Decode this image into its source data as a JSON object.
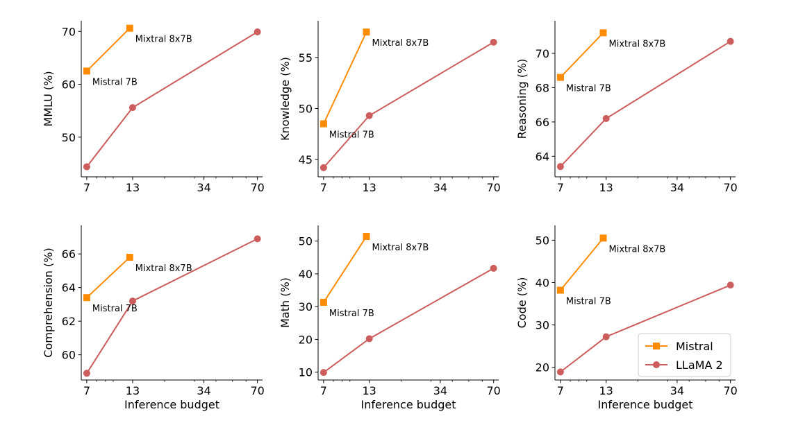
{
  "chart_data": [
    {
      "type": "line",
      "ylabel": "MMLU (%)",
      "xlabel": "",
      "x_scale": "log",
      "xticks": [
        7,
        13,
        34,
        70
      ],
      "xlim": [
        6.5,
        75
      ],
      "yticks": [
        50,
        60,
        70
      ],
      "ylim": [
        42.5,
        72
      ],
      "series": [
        {
          "name": "Mistral",
          "color": "#ff8c00",
          "marker": "square",
          "x": [
            7,
            12.5
          ],
          "y": [
            62.5,
            70.6
          ]
        },
        {
          "name": "LLaMA 2",
          "color": "#cd5c5c",
          "marker": "circle",
          "x": [
            7,
            13,
            70
          ],
          "y": [
            44.4,
            55.6,
            69.9
          ]
        }
      ],
      "annotations": [
        {
          "text": "Mistral 7B",
          "x": 7,
          "y": 62.5
        },
        {
          "text": "Mixtral 8x7B",
          "x": 12.5,
          "y": 70.6
        }
      ]
    },
    {
      "type": "line",
      "ylabel": "Knowledge (%)",
      "xlabel": "",
      "x_scale": "log",
      "xticks": [
        7,
        13,
        34,
        70
      ],
      "xlim": [
        6.5,
        75
      ],
      "yticks": [
        45,
        50,
        55
      ],
      "ylim": [
        43.3,
        58.6
      ],
      "series": [
        {
          "name": "Mistral",
          "color": "#ff8c00",
          "marker": "square",
          "x": [
            7,
            12.5
          ],
          "y": [
            48.5,
            57.5
          ]
        },
        {
          "name": "LLaMA 2",
          "color": "#cd5c5c",
          "marker": "circle",
          "x": [
            7,
            13,
            70
          ],
          "y": [
            44.2,
            49.3,
            56.5
          ]
        }
      ],
      "annotations": [
        {
          "text": "Mistral 7B",
          "x": 7,
          "y": 48.5
        },
        {
          "text": "Mixtral 8x7B",
          "x": 12.5,
          "y": 57.5
        }
      ]
    },
    {
      "type": "line",
      "ylabel": "Reasoning (%)",
      "xlabel": "",
      "x_scale": "log",
      "xticks": [
        7,
        13,
        34,
        70
      ],
      "xlim": [
        6.5,
        75
      ],
      "yticks": [
        64,
        66,
        68,
        70
      ],
      "ylim": [
        62.8,
        71.9
      ],
      "series": [
        {
          "name": "Mistral",
          "color": "#ff8c00",
          "marker": "square",
          "x": [
            7,
            12.5
          ],
          "y": [
            68.6,
            71.2
          ]
        },
        {
          "name": "LLaMA 2",
          "color": "#cd5c5c",
          "marker": "circle",
          "x": [
            7,
            13,
            70
          ],
          "y": [
            63.4,
            66.2,
            70.7
          ]
        }
      ],
      "annotations": [
        {
          "text": "Mistral 7B",
          "x": 7,
          "y": 68.6
        },
        {
          "text": "Mixtral 8x7B",
          "x": 12.5,
          "y": 71.2
        }
      ]
    },
    {
      "type": "line",
      "ylabel": "Comprehension (%)",
      "xlabel": "Inference budget",
      "x_scale": "log",
      "xticks": [
        7,
        13,
        34,
        70
      ],
      "xlim": [
        6.5,
        75
      ],
      "yticks": [
        60,
        62,
        64,
        66
      ],
      "ylim": [
        58.5,
        67.7
      ],
      "series": [
        {
          "name": "Mistral",
          "color": "#ff8c00",
          "marker": "square",
          "x": [
            7,
            12.5
          ],
          "y": [
            63.4,
            65.8
          ]
        },
        {
          "name": "LLaMA 2",
          "color": "#cd5c5c",
          "marker": "circle",
          "x": [
            7,
            13,
            70
          ],
          "y": [
            58.9,
            63.2,
            66.9
          ]
        }
      ],
      "annotations": [
        {
          "text": "Mistral 7B",
          "x": 7,
          "y": 63.4
        },
        {
          "text": "Mixtral 8x7B",
          "x": 12.5,
          "y": 65.8
        }
      ]
    },
    {
      "type": "line",
      "ylabel": "Math (%)",
      "xlabel": "Inference budget",
      "x_scale": "log",
      "xticks": [
        7,
        13,
        34,
        70
      ],
      "xlim": [
        6.5,
        75
      ],
      "yticks": [
        10,
        20,
        30,
        40,
        50
      ],
      "ylim": [
        7.6,
        54.8
      ],
      "series": [
        {
          "name": "Mistral",
          "color": "#ff8c00",
          "marker": "square",
          "x": [
            7,
            12.5
          ],
          "y": [
            31.3,
            51.4
          ]
        },
        {
          "name": "LLaMA 2",
          "color": "#cd5c5c",
          "marker": "circle",
          "x": [
            7,
            13,
            70
          ],
          "y": [
            9.9,
            20.2,
            41.7
          ]
        }
      ],
      "annotations": [
        {
          "text": "Mistral 7B",
          "x": 7,
          "y": 31.3
        },
        {
          "text": "Mixtral 8x7B",
          "x": 12.5,
          "y": 51.4
        }
      ]
    },
    {
      "type": "line",
      "ylabel": "Code (%)",
      "xlabel": "Inference budget",
      "x_scale": "log",
      "xticks": [
        7,
        13,
        34,
        70
      ],
      "xlim": [
        6.5,
        75
      ],
      "yticks": [
        20,
        30,
        40,
        50
      ],
      "ylim": [
        17.0,
        53.5
      ],
      "series": [
        {
          "name": "Mistral",
          "color": "#ff8c00",
          "marker": "square",
          "x": [
            7,
            12.5
          ],
          "y": [
            38.2,
            50.5
          ]
        },
        {
          "name": "LLaMA 2",
          "color": "#cd5c5c",
          "marker": "circle",
          "x": [
            7,
            13,
            70
          ],
          "y": [
            18.9,
            27.2,
            39.4
          ]
        }
      ],
      "annotations": [
        {
          "text": "Mistral 7B",
          "x": 7,
          "y": 38.2
        },
        {
          "text": "Mixtral 8x7B",
          "x": 12.5,
          "y": 50.5
        }
      ],
      "legend": {
        "placement": "lower-right",
        "entries": [
          "Mistral",
          "LLaMA 2"
        ]
      }
    }
  ]
}
